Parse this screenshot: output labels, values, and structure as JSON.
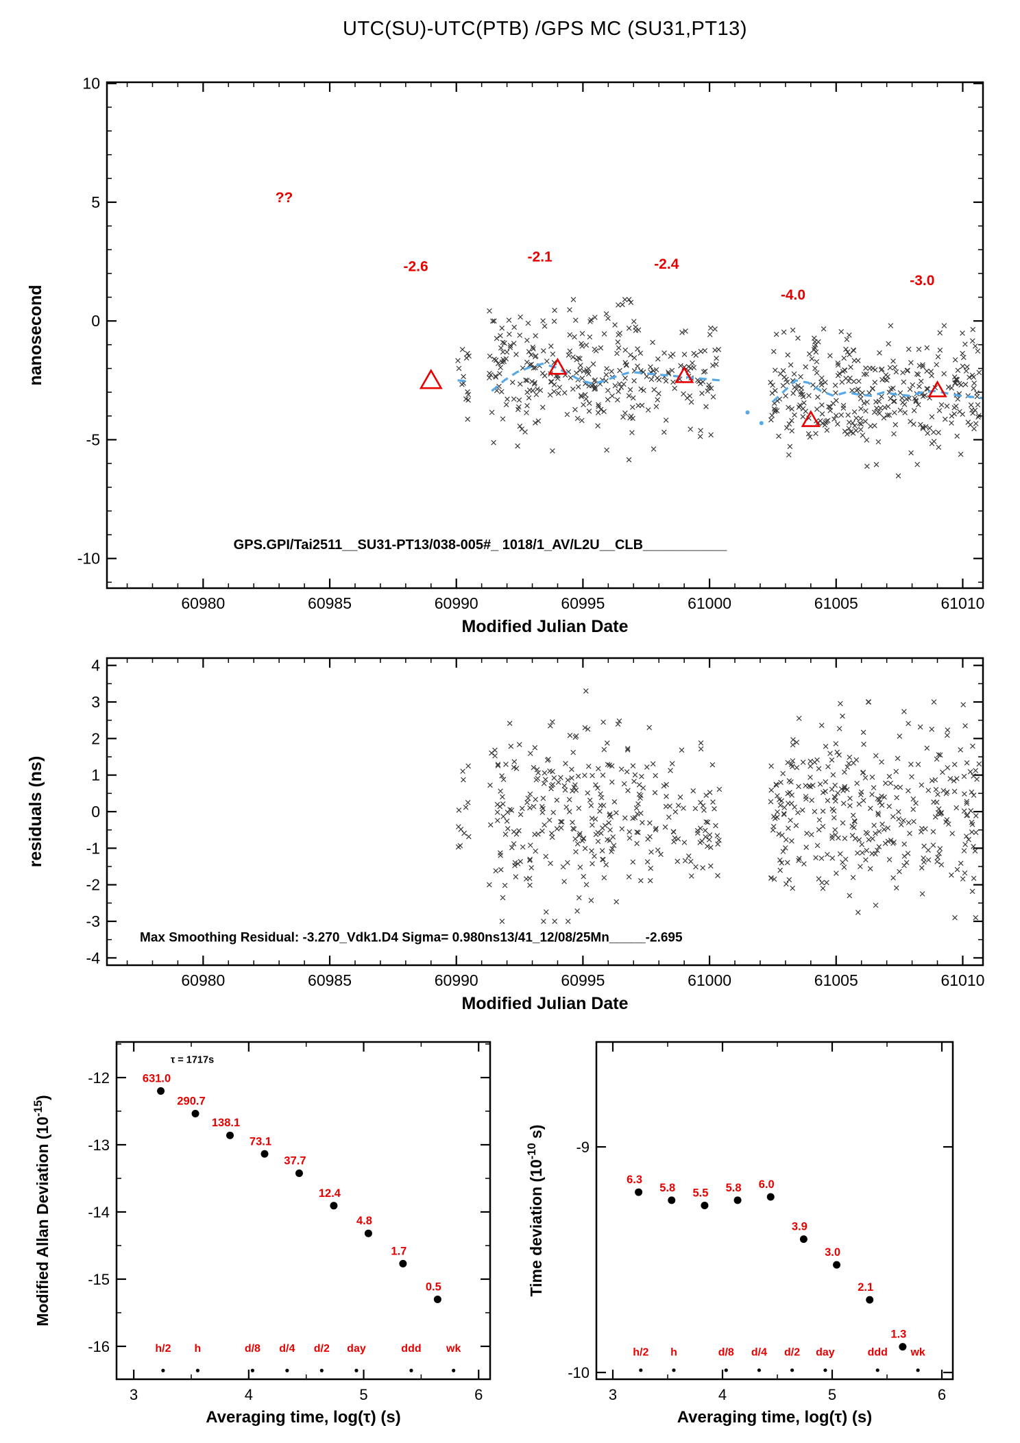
{
  "header": {
    "title": "UTC(SU)-UTC(PTB)  /GPS  MC  (SU31,PT13)"
  },
  "colors": {
    "red": "#e60000",
    "blue": "#56a8e6",
    "scatter": "#1c1c1c",
    "black": "#000000"
  },
  "chart_data": [
    {
      "type": "scatter",
      "title": "UTC(SU)-UTC(PTB)  /GPS  MC  (SU31,PT13)",
      "xlabel": "Modified Julian Date",
      "ylabel": "nanosecond",
      "xlim": [
        60976.2,
        61010.8
      ],
      "ylim": [
        -11.25,
        10.05
      ],
      "xticks": [
        60980,
        60985,
        60990,
        60995,
        61000,
        61005,
        61010
      ],
      "yticks": [
        -10,
        -5,
        0,
        5,
        10
      ],
      "x_minor_step": 1,
      "y_minor_step": 1,
      "clusters": [
        {
          "x0": 60990.05,
          "x1": 60990.5,
          "n": 14,
          "mean": -2.6,
          "sd": 0.9,
          "ymin": -5.2,
          "ymax": -1.2
        },
        {
          "x0": 60991.3,
          "x1": 60997.4,
          "n": 240,
          "mean": -2.1,
          "sd": 1.4,
          "ymin": -6.3,
          "ymax": 0.9
        },
        {
          "x0": 60997.5,
          "x1": 61000.4,
          "n": 75,
          "mean": -2.5,
          "sd": 1.1,
          "ymin": -5.5,
          "ymax": -0.3
        },
        {
          "x0": 61002.4,
          "x1": 61010.7,
          "n": 340,
          "mean": -3.1,
          "sd": 1.2,
          "ymin": -6.8,
          "ymax": -0.2
        }
      ],
      "smooth_line": {
        "segments": [
          [
            [
              60990.05,
              -2.5
            ],
            [
              60990.55,
              -2.55
            ]
          ],
          [
            [
              60991.4,
              -2.95
            ],
            [
              60991.9,
              -2.5
            ],
            [
              60992.4,
              -2.15
            ],
            [
              60992.9,
              -1.95
            ],
            [
              60993.4,
              -1.8
            ],
            [
              60993.9,
              -1.95
            ],
            [
              60994.4,
              -2.2
            ],
            [
              60994.9,
              -2.5
            ],
            [
              60995.4,
              -2.65
            ],
            [
              60995.9,
              -2.5
            ],
            [
              60996.4,
              -2.3
            ],
            [
              60996.9,
              -2.15
            ],
            [
              60997.4,
              -2.2
            ],
            [
              60997.9,
              -2.25
            ],
            [
              60998.4,
              -2.3
            ],
            [
              60998.9,
              -2.35
            ],
            [
              60999.4,
              -2.4
            ],
            [
              60999.9,
              -2.45
            ],
            [
              61000.4,
              -2.5
            ]
          ],
          [
            [
              61002.5,
              -3.4
            ],
            [
              61003.0,
              -2.9
            ],
            [
              61003.4,
              -2.5
            ],
            [
              61003.9,
              -2.6
            ],
            [
              61004.4,
              -2.95
            ],
            [
              61004.9,
              -3.15
            ],
            [
              61005.4,
              -3.0
            ],
            [
              61005.9,
              -3.1
            ],
            [
              61006.4,
              -3.15
            ],
            [
              61006.9,
              -3.0
            ],
            [
              61007.4,
              -3.1
            ],
            [
              61007.9,
              -3.15
            ],
            [
              61008.4,
              -3.0
            ],
            [
              61008.9,
              -2.95
            ],
            [
              61009.4,
              -3.05
            ],
            [
              61009.9,
              -3.15
            ],
            [
              61010.4,
              -3.2
            ],
            [
              61010.8,
              -3.25
            ]
          ]
        ]
      },
      "blue_dots": [
        [
          61001.5,
          -3.85
        ],
        [
          61002.05,
          -4.3
        ]
      ],
      "triangles": [
        {
          "x": 60989.0,
          "y": -2.55,
          "s": 16
        },
        {
          "x": 60994.0,
          "y": -2.0,
          "s": 13
        },
        {
          "x": 60999.0,
          "y": -2.35,
          "s": 13
        },
        {
          "x": 61004.0,
          "y": -4.2,
          "s": 13
        },
        {
          "x": 61009.0,
          "y": -2.95,
          "s": 13
        }
      ],
      "red_labels": [
        {
          "text": "??",
          "x": 60983.2,
          "y": 5.0
        },
        {
          "text": "-2.6",
          "x": 60988.4,
          "y": 2.1
        },
        {
          "text": "-2.1",
          "x": 60993.3,
          "y": 2.5
        },
        {
          "text": "-2.4",
          "x": 60998.3,
          "y": 2.2
        },
        {
          "text": "-4.0",
          "x": 61003.3,
          "y": 0.9
        },
        {
          "text": "-3.0",
          "x": 61008.4,
          "y": 1.5
        }
      ],
      "inner_text": {
        "text": "GPS.GPI/Tai2511__SU31-PT13/038-005#_  1018/1_AV/L2U__CLB___________",
        "x": 60981.2,
        "y": -9.6
      }
    },
    {
      "type": "scatter",
      "xlabel": "Modified Julian Date",
      "ylabel": "residuals (ns)",
      "xlim": [
        60976.2,
        61010.8
      ],
      "ylim": [
        -4.2,
        4.2
      ],
      "xticks": [
        60980,
        60985,
        60990,
        60995,
        61000,
        61005,
        61010
      ],
      "yticks": [
        -4,
        -3,
        -2,
        -1,
        0,
        1,
        2,
        3,
        4
      ],
      "x_minor_step": 1,
      "y_minor_step": 0.5,
      "clusters": [
        {
          "x0": 60990.05,
          "x1": 60990.5,
          "n": 12,
          "mean": 0.1,
          "sd": 0.7,
          "ymin": -1.6,
          "ymax": 1.6
        },
        {
          "x0": 60991.3,
          "x1": 60997.4,
          "n": 240,
          "mean": 0.0,
          "sd": 1.15,
          "ymin": -3.0,
          "ymax": 3.3
        },
        {
          "x0": 60997.5,
          "x1": 61000.4,
          "n": 75,
          "mean": -0.2,
          "sd": 1.0,
          "ymin": -2.6,
          "ymax": 2.3
        },
        {
          "x0": 61002.4,
          "x1": 61010.7,
          "n": 340,
          "mean": 0.0,
          "sd": 1.1,
          "ymin": -2.9,
          "ymax": 3.0
        }
      ],
      "inner_text": {
        "text": "Max Smoothing Residual: -3.270_Vdk1.D4  Sigma= 0.980ns13/41_12/08/25Mn_____-2.695",
        "x": 60977.5,
        "y": -3.55
      }
    },
    {
      "type": "scatter",
      "xlabel": "Averaging time, log(τ) (s)",
      "ylabel_parts": {
        "pre": "Modified Allan Deviation (10",
        "sup": "-15",
        "post": ")"
      },
      "xlim": [
        2.85,
        6.1
      ],
      "ylim": [
        -16.49,
        -11.47
      ],
      "xticks": [
        3,
        4,
        5,
        6
      ],
      "yticks": [
        -12,
        -13,
        -14,
        -15,
        -16
      ],
      "x_minor_step": 0.5,
      "y_minor_step": 0.5,
      "log_offset": -15,
      "tau_note": {
        "text": "τ = 1717s",
        "x": 3.32,
        "y": -11.78
      },
      "points": [
        {
          "x": 3.235,
          "label": "631.0"
        },
        {
          "x": 3.536,
          "label": "290.7"
        },
        {
          "x": 3.837,
          "label": "138.1"
        },
        {
          "x": 4.138,
          "label": "73.1"
        },
        {
          "x": 4.439,
          "label": "37.7"
        },
        {
          "x": 4.74,
          "label": "12.4"
        },
        {
          "x": 5.041,
          "label": "4.8"
        },
        {
          "x": 5.342,
          "label": "1.7"
        },
        {
          "x": 5.643,
          "label": "0.5"
        }
      ],
      "time_markers": {
        "labels": [
          "h/2",
          "h",
          "d/8",
          "d/4",
          "d/2",
          "day",
          "ddd",
          "wk"
        ],
        "x": [
          3.255,
          3.556,
          4.033,
          4.334,
          4.635,
          4.937,
          5.414,
          5.782
        ],
        "label_y": -16.08,
        "dot_y": -16.36
      }
    },
    {
      "type": "scatter",
      "xlabel": "Averaging time, log(τ) (s)",
      "ylabel_parts": {
        "pre": "Time deviation (10",
        "sup": "-10",
        "post": " s)"
      },
      "xlim": [
        2.85,
        6.1
      ],
      "ylim": [
        -10.03,
        -8.535
      ],
      "xticks": [
        3,
        4,
        5,
        6
      ],
      "yticks": [
        -9,
        -10
      ],
      "x_minor_step": 0.5,
      "y_minor_step": null,
      "log_offset": -10,
      "points": [
        {
          "x": 3.235,
          "label": "6.3"
        },
        {
          "x": 3.536,
          "label": "5.8"
        },
        {
          "x": 3.837,
          "label": "5.5"
        },
        {
          "x": 4.138,
          "label": "5.8"
        },
        {
          "x": 4.439,
          "label": "6.0"
        },
        {
          "x": 4.74,
          "label": "3.9"
        },
        {
          "x": 5.041,
          "label": "3.0"
        },
        {
          "x": 5.342,
          "label": "2.1"
        },
        {
          "x": 5.643,
          "label": "1.3"
        }
      ],
      "time_markers": {
        "labels": [
          "h/2",
          "h",
          "d/8",
          "d/4",
          "d/2",
          "day",
          "ddd",
          "wk"
        ],
        "x": [
          3.255,
          3.556,
          4.033,
          4.334,
          4.635,
          4.937,
          5.414,
          5.782
        ],
        "label_y": -9.925,
        "dot_y": -9.99
      }
    }
  ]
}
